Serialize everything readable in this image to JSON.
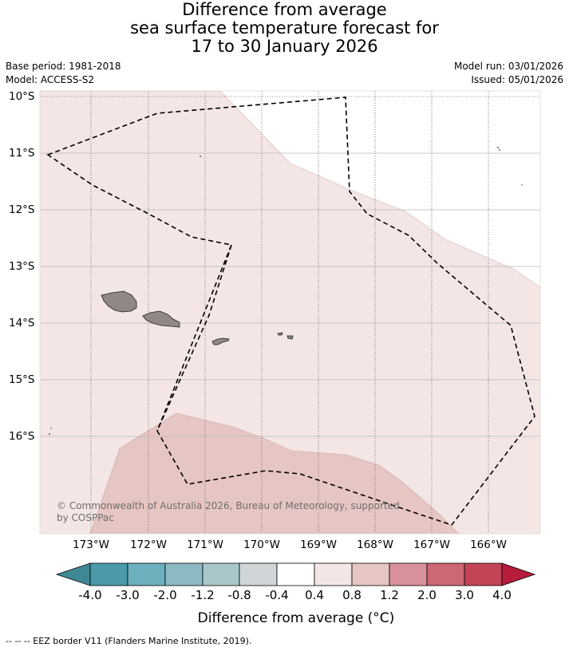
{
  "title": {
    "line1": "Difference from average",
    "line2": "sea surface temperature forecast for",
    "line3": "17 to 30 January 2026"
  },
  "meta": {
    "base_period": "Base period: 1981-2018",
    "model": "Model: ACCESS-S2",
    "model_run": "Model run: 03/01/2026",
    "issued": "Issued: 05/01/2026"
  },
  "map": {
    "lat_labels": [
      "10°S",
      "11°S",
      "12°S",
      "13°S",
      "14°S",
      "15°S",
      "16°S"
    ],
    "lon_labels": [
      "173°W",
      "172°W",
      "171°W",
      "170°W",
      "169°W",
      "168°W",
      "167°W",
      "166°W"
    ],
    "credit": "© Commonwealth of Australia 2026, Bureau of Meteorology, supported by COSPPac",
    "lat_range": [
      -17.7,
      -9.9
    ],
    "lon_range": [
      -173.9,
      -165.1
    ],
    "shading": [
      {
        "category": "0.4 to 0.8",
        "color": "#f4e6e4"
      },
      {
        "category": "0.8 to 1.2",
        "color": "#e6c6c2"
      }
    ],
    "land_color": "#908886",
    "eez_line": "dashed"
  },
  "colorbar": {
    "ticks": [
      "-4.0",
      "-3.0",
      "-2.0",
      "-1.2",
      "-0.8",
      "-0.4",
      "0.4",
      "0.8",
      "1.2",
      "2.0",
      "3.0",
      "4.0"
    ],
    "colors": [
      "#4a9aa9",
      "#6cafbd",
      "#8bbac4",
      "#a9c7cb",
      "#d0d6d7",
      "#ffffff",
      "#f4e6e4",
      "#e6c6c2",
      "#d8909a",
      "#cc6774",
      "#c24456"
    ],
    "under_color": "#3f8994",
    "over_color": "#b61c3c",
    "title": "Difference from average (°C)"
  },
  "footer": "-- -- -- EEZ border V11 (Flanders Marine Institute, 2019)."
}
